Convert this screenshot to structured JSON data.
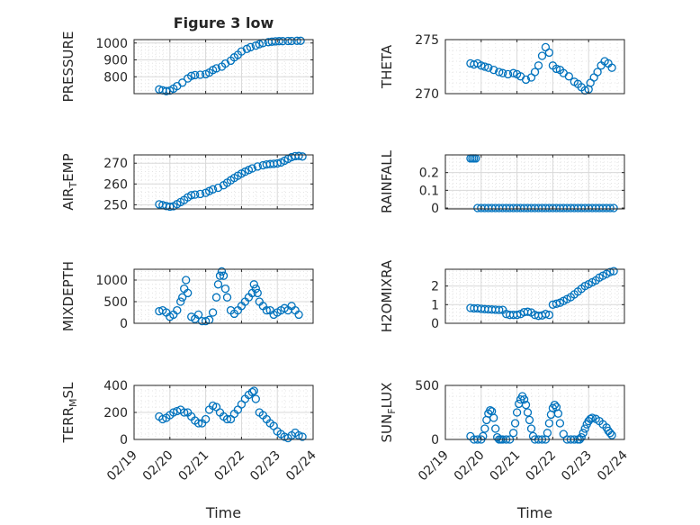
{
  "figure_title": "Figure 3 low",
  "marker_color": "#0072BD",
  "x_axis_label": "Time",
  "x_tick_labels": [
    "02/19",
    "02/20",
    "02/21",
    "02/22",
    "02/23",
    "02/24"
  ],
  "chart_data": [
    {
      "type": "scatter",
      "title": "Figure 3 low",
      "ylabel": "PRESSURE",
      "xlabel": "",
      "x_unit": "days since 02/19",
      "xlim": [
        "02/19",
        "02/24"
      ],
      "ylim": [
        700,
        1020
      ],
      "yticks": [
        800,
        900,
        1000
      ],
      "grid": true,
      "series": [
        {
          "x": [
            0.7,
            0.8,
            0.9,
            1.0,
            1.1,
            1.2,
            1.35,
            1.5,
            1.6,
            1.7,
            1.85,
            2.0,
            2.1,
            2.2,
            2.3,
            2.45,
            2.55,
            2.7,
            2.8,
            2.9,
            3.0,
            3.15,
            3.25,
            3.4,
            3.5,
            3.6,
            3.75,
            3.85,
            3.95,
            4.05,
            4.15,
            4.3,
            4.4,
            4.55,
            4.65
          ],
          "y": [
            725,
            720,
            715,
            718,
            730,
            745,
            765,
            790,
            805,
            810,
            812,
            815,
            825,
            840,
            850,
            860,
            878,
            895,
            915,
            930,
            950,
            965,
            975,
            985,
            993,
            1000,
            1005,
            1008,
            1010,
            1011,
            1011,
            1012,
            1012,
            1013,
            1013
          ]
        }
      ]
    },
    {
      "type": "scatter",
      "title": "",
      "ylabel": "THETA",
      "xlabel": "",
      "x_unit": "days since 02/19",
      "xlim": [
        "02/19",
        "02/24"
      ],
      "ylim": [
        270,
        275
      ],
      "yticks": [
        270,
        275
      ],
      "grid": true,
      "series": [
        {
          "x": [
            0.7,
            0.8,
            0.9,
            1.0,
            1.1,
            1.2,
            1.35,
            1.5,
            1.6,
            1.75,
            1.9,
            2.0,
            2.1,
            2.25,
            2.4,
            2.5,
            2.6,
            2.7,
            2.8,
            2.9,
            3.0,
            3.1,
            3.2,
            3.3,
            3.45,
            3.6,
            3.7,
            3.8,
            3.9,
            4.0,
            4.05,
            4.15,
            4.25,
            4.35,
            4.45,
            4.55,
            4.65
          ],
          "y": [
            272.8,
            272.7,
            272.8,
            272.6,
            272.5,
            272.4,
            272.2,
            272.0,
            271.9,
            271.8,
            271.9,
            271.8,
            271.6,
            271.3,
            271.5,
            272.0,
            272.6,
            273.5,
            274.3,
            273.8,
            272.6,
            272.3,
            272.2,
            271.9,
            271.6,
            271.1,
            270.9,
            270.6,
            270.3,
            270.4,
            271.0,
            271.5,
            272.0,
            272.6,
            273.0,
            272.8,
            272.4
          ]
        }
      ]
    },
    {
      "type": "scatter",
      "title": "",
      "ylabel": "AIR_TEMP",
      "xlabel": "",
      "x_unit": "days since 02/19",
      "xlim": [
        "02/19",
        "02/24"
      ],
      "ylim": [
        248,
        274
      ],
      "yticks": [
        250,
        260,
        270
      ],
      "grid": true,
      "series": [
        {
          "x": [
            0.7,
            0.8,
            0.9,
            1.0,
            1.1,
            1.2,
            1.3,
            1.4,
            1.5,
            1.6,
            1.7,
            1.85,
            2.0,
            2.1,
            2.2,
            2.35,
            2.5,
            2.6,
            2.7,
            2.8,
            2.9,
            3.0,
            3.1,
            3.2,
            3.3,
            3.45,
            3.6,
            3.7,
            3.8,
            3.9,
            4.0,
            4.1,
            4.2,
            4.3,
            4.4,
            4.5,
            4.6,
            4.7
          ],
          "y": [
            250.2,
            249.8,
            249.4,
            249.1,
            249.3,
            250.3,
            251.3,
            252.3,
            253.6,
            254.6,
            254.9,
            255.2,
            255.7,
            256.6,
            257.4,
            258.2,
            259.4,
            260.6,
            261.8,
            262.9,
            264.0,
            265.0,
            265.9,
            266.7,
            267.5,
            268.4,
            269.0,
            269.4,
            269.6,
            269.7,
            269.9,
            270.3,
            271.2,
            272.1,
            272.9,
            273.4,
            273.5,
            273.2
          ]
        }
      ]
    },
    {
      "type": "scatter",
      "title": "",
      "ylabel": "RAINFALL",
      "xlabel": "",
      "x_unit": "days since 02/19",
      "xlim": [
        "02/19",
        "02/24"
      ],
      "ylim": [
        -0.005,
        0.3
      ],
      "yticks": [
        0,
        0.1,
        0.2
      ],
      "grid": true,
      "series": [
        {
          "x": [
            0.7,
            0.75,
            0.8,
            0.85,
            0.9,
            1.0,
            1.1,
            1.2,
            1.3,
            1.4,
            1.5,
            1.6,
            1.7,
            1.8,
            1.9,
            2.0,
            2.1,
            2.2,
            2.3,
            2.4,
            2.5,
            2.6,
            2.7,
            2.8,
            2.9,
            3.0,
            3.1,
            3.2,
            3.3,
            3.4,
            3.5,
            3.6,
            3.7,
            3.8,
            3.9,
            4.0,
            4.1,
            4.2,
            4.3,
            4.4,
            4.5,
            4.6,
            4.7
          ],
          "y": [
            0.28,
            0.28,
            0.28,
            0.28,
            0,
            0,
            0,
            0,
            0,
            0,
            0,
            0,
            0,
            0,
            0,
            0,
            0,
            0,
            0,
            0,
            0,
            0,
            0,
            0,
            0,
            0,
            0,
            0,
            0,
            0,
            0,
            0,
            0,
            0,
            0,
            0,
            0,
            0,
            0,
            0,
            0,
            0,
            0
          ]
        }
      ]
    },
    {
      "type": "scatter",
      "title": "",
      "ylabel": "MIXDEPTH",
      "xlabel": "",
      "x_unit": "days since 02/19",
      "xlim": [
        "02/19",
        "02/24"
      ],
      "ylim": [
        0,
        1250
      ],
      "yticks": [
        0,
        500,
        1000
      ],
      "grid": true,
      "series": [
        {
          "x": [
            0.7,
            0.8,
            0.9,
            1.0,
            1.1,
            1.2,
            1.3,
            1.35,
            1.4,
            1.45,
            1.5,
            1.6,
            1.7,
            1.8,
            1.9,
            2.0,
            2.1,
            2.2,
            2.3,
            2.35,
            2.4,
            2.45,
            2.5,
            2.55,
            2.6,
            2.7,
            2.8,
            2.9,
            3.0,
            3.1,
            3.2,
            3.3,
            3.35,
            3.4,
            3.45,
            3.5,
            3.6,
            3.7,
            3.8,
            3.9,
            4.0,
            4.1,
            4.2,
            4.3,
            4.4,
            4.5,
            4.6
          ],
          "y": [
            280,
            300,
            250,
            150,
            200,
            300,
            500,
            600,
            800,
            1000,
            700,
            150,
            100,
            200,
            50,
            50,
            80,
            250,
            600,
            900,
            1100,
            1200,
            1100,
            800,
            600,
            300,
            220,
            300,
            400,
            500,
            600,
            700,
            900,
            800,
            700,
            500,
            400,
            300,
            300,
            200,
            250,
            300,
            350,
            300,
            400,
            300,
            200
          ]
        }
      ]
    },
    {
      "type": "scatter",
      "title": "",
      "ylabel": "H2OMIXRA",
      "xlabel": "",
      "x_unit": "days since 02/19",
      "xlim": [
        "02/19",
        "02/24"
      ],
      "ylim": [
        0,
        2.9
      ],
      "yticks": [
        0,
        1,
        2
      ],
      "grid": true,
      "series": [
        {
          "x": [
            0.7,
            0.8,
            0.9,
            1.0,
            1.1,
            1.2,
            1.3,
            1.4,
            1.5,
            1.6,
            1.7,
            1.8,
            1.9,
            2.0,
            2.1,
            2.2,
            2.3,
            2.4,
            2.5,
            2.6,
            2.7,
            2.8,
            2.9,
            3.0,
            3.1,
            3.2,
            3.3,
            3.4,
            3.5,
            3.6,
            3.7,
            3.8,
            3.9,
            4.0,
            4.1,
            4.2,
            4.3,
            4.4,
            4.5,
            4.6,
            4.7
          ],
          "y": [
            0.82,
            0.8,
            0.8,
            0.78,
            0.76,
            0.75,
            0.74,
            0.73,
            0.72,
            0.72,
            0.5,
            0.45,
            0.45,
            0.45,
            0.5,
            0.6,
            0.62,
            0.58,
            0.45,
            0.4,
            0.42,
            0.5,
            0.45,
            1.0,
            1.05,
            1.1,
            1.2,
            1.3,
            1.4,
            1.55,
            1.7,
            1.85,
            2.0,
            2.1,
            2.2,
            2.3,
            2.45,
            2.55,
            2.65,
            2.75,
            2.8
          ]
        }
      ]
    },
    {
      "type": "scatter",
      "title": "",
      "ylabel": "TERR_MSL",
      "xlabel": "",
      "x_unit": "days since 02/19",
      "xlim": [
        "02/19",
        "02/24"
      ],
      "ylim": [
        0,
        400
      ],
      "yticks": [
        0,
        200,
        400
      ],
      "grid": true,
      "series": [
        {
          "x": [
            0.7,
            0.8,
            0.9,
            1.0,
            1.1,
            1.2,
            1.3,
            1.4,
            1.5,
            1.6,
            1.7,
            1.8,
            1.9,
            2.0,
            2.1,
            2.2,
            2.3,
            2.4,
            2.5,
            2.6,
            2.7,
            2.8,
            2.9,
            3.0,
            3.1,
            3.2,
            3.3,
            3.35,
            3.4,
            3.5,
            3.6,
            3.7,
            3.8,
            3.9,
            4.0,
            4.1,
            4.2,
            4.3,
            4.4,
            4.5,
            4.6,
            4.7
          ],
          "y": [
            170,
            150,
            160,
            180,
            200,
            210,
            220,
            200,
            200,
            170,
            140,
            120,
            120,
            150,
            220,
            250,
            240,
            200,
            170,
            150,
            150,
            190,
            220,
            260,
            300,
            330,
            350,
            360,
            300,
            200,
            180,
            150,
            120,
            100,
            60,
            40,
            20,
            10,
            30,
            50,
            30,
            20
          ]
        }
      ]
    },
    {
      "type": "scatter",
      "title": "",
      "ylabel": "SUN_FLUX",
      "xlabel": "",
      "x_unit": "days since 02/19",
      "xlim": [
        "02/19",
        "02/24"
      ],
      "ylim": [
        0,
        500
      ],
      "yticks": [
        0,
        500
      ],
      "grid": true,
      "series": [
        {
          "x": [
            0.7,
            0.8,
            0.9,
            1.0,
            1.05,
            1.1,
            1.15,
            1.2,
            1.25,
            1.3,
            1.35,
            1.4,
            1.45,
            1.5,
            1.55,
            1.6,
            1.7,
            1.8,
            1.9,
            1.95,
            2.0,
            2.05,
            2.1,
            2.15,
            2.2,
            2.25,
            2.3,
            2.35,
            2.4,
            2.45,
            2.5,
            2.6,
            2.7,
            2.8,
            2.85,
            2.9,
            2.95,
            3.0,
            3.05,
            3.1,
            3.15,
            3.2,
            3.3,
            3.4,
            3.5,
            3.6,
            3.7,
            3.75,
            3.8,
            3.85,
            3.9,
            3.95,
            4.0,
            4.05,
            4.1,
            4.2,
            4.3,
            4.4,
            4.5,
            4.55,
            4.6,
            4.65
          ],
          "y": [
            30,
            0,
            0,
            0,
            30,
            100,
            180,
            240,
            270,
            260,
            200,
            100,
            20,
            0,
            0,
            0,
            0,
            0,
            60,
            150,
            250,
            330,
            370,
            400,
            370,
            320,
            250,
            180,
            100,
            30,
            0,
            0,
            0,
            0,
            60,
            150,
            230,
            290,
            320,
            300,
            240,
            150,
            50,
            0,
            0,
            0,
            0,
            0,
            20,
            60,
            100,
            140,
            170,
            190,
            200,
            190,
            170,
            140,
            110,
            80,
            60,
            40
          ]
        }
      ]
    }
  ]
}
